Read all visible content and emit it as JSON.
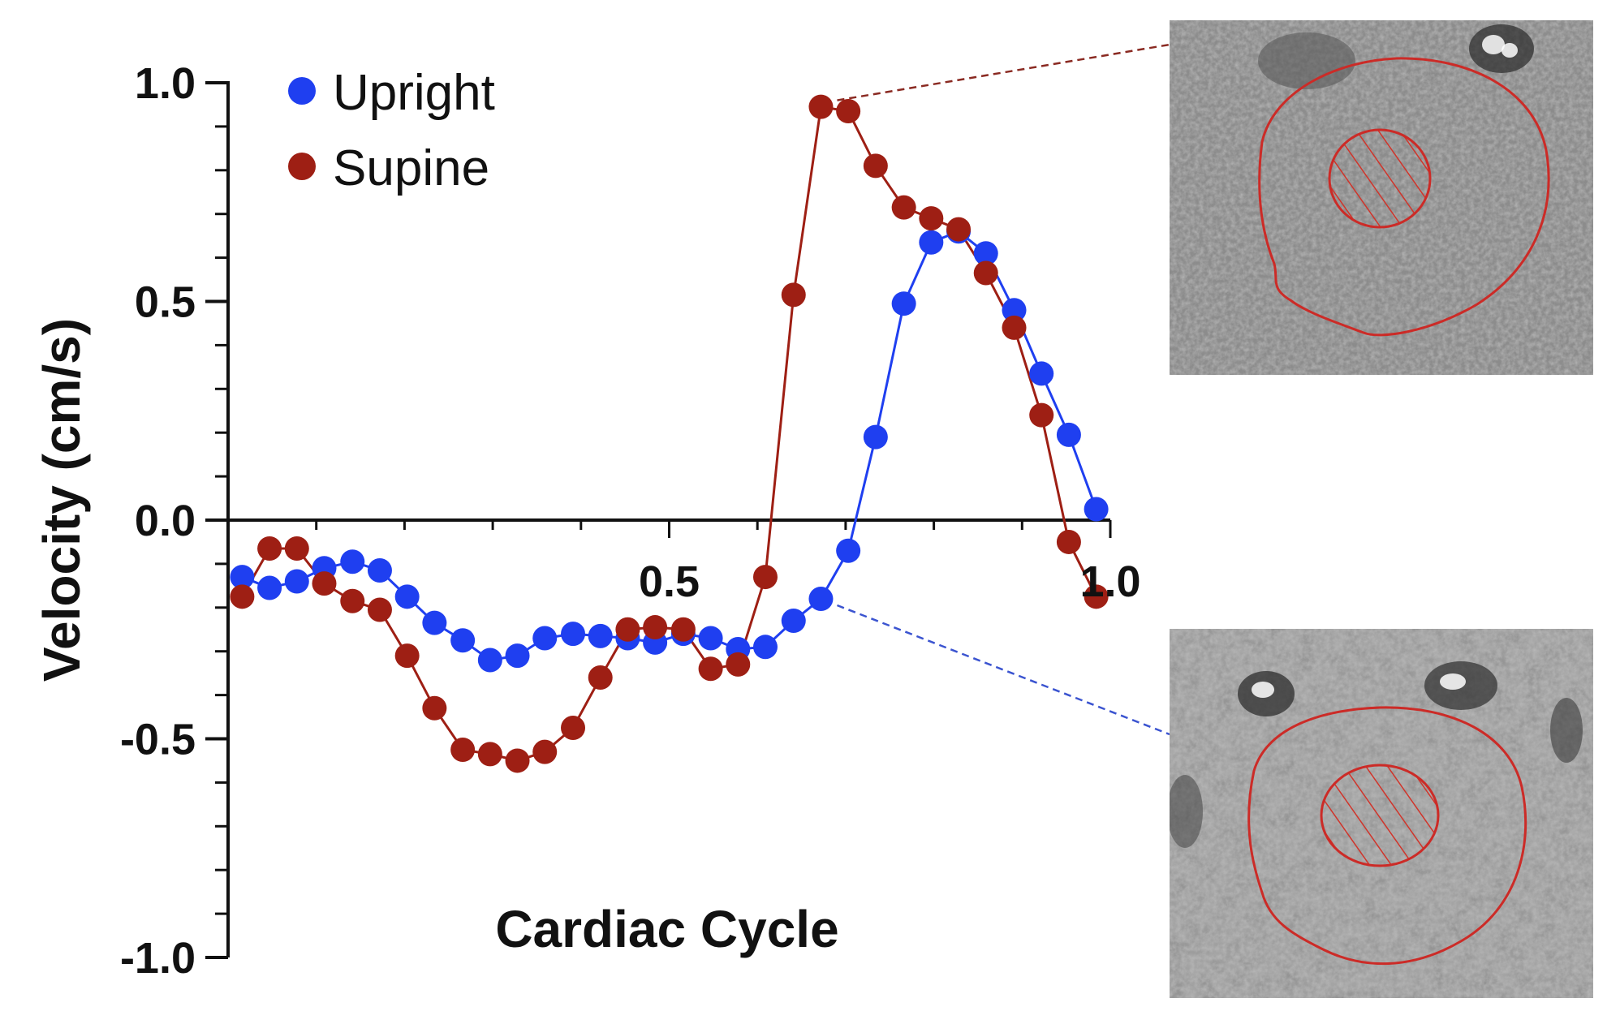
{
  "chart_data": {
    "type": "line",
    "xlabel": "Cardiac Cycle",
    "ylabel": "Velocity (cm/s)",
    "xlim": [
      0,
      1.0
    ],
    "ylim": [
      -1.0,
      1.0
    ],
    "x_ticks": [
      {
        "value": 0.5,
        "label": "0.5"
      },
      {
        "value": 1.0,
        "label": "1.0"
      }
    ],
    "y_ticks": [
      {
        "value": 1.0,
        "label": "1.0"
      },
      {
        "value": 0.5,
        "label": "0.5"
      },
      {
        "value": 0.0,
        "label": "0.0"
      },
      {
        "value": -0.5,
        "label": "-0.5"
      },
      {
        "value": -1.0,
        "label": "-1.0"
      }
    ],
    "grid": false,
    "legend_position": "top-left",
    "series": [
      {
        "name": "Upright",
        "color": "#1f3ff0",
        "x": [
          0.016,
          0.047,
          0.078,
          0.109,
          0.141,
          0.172,
          0.203,
          0.234,
          0.266,
          0.297,
          0.328,
          0.359,
          0.391,
          0.422,
          0.453,
          0.484,
          0.516,
          0.547,
          0.578,
          0.609,
          0.641,
          0.672,
          0.703,
          0.734,
          0.766,
          0.797,
          0.828,
          0.859,
          0.891,
          0.922,
          0.953,
          0.984
        ],
        "y": [
          -0.13,
          -0.155,
          -0.14,
          -0.11,
          -0.095,
          -0.115,
          -0.175,
          -0.235,
          -0.275,
          -0.32,
          -0.31,
          -0.27,
          -0.26,
          -0.265,
          -0.27,
          -0.28,
          -0.26,
          -0.27,
          -0.295,
          -0.29,
          -0.23,
          -0.18,
          -0.07,
          0.19,
          0.495,
          0.635,
          0.66,
          0.61,
          0.48,
          0.335,
          0.195,
          0.025
        ]
      },
      {
        "name": "Supine",
        "color": "#9e1f14",
        "x": [
          0.016,
          0.047,
          0.078,
          0.109,
          0.141,
          0.172,
          0.203,
          0.234,
          0.266,
          0.297,
          0.328,
          0.359,
          0.391,
          0.422,
          0.453,
          0.484,
          0.516,
          0.547,
          0.578,
          0.609,
          0.641,
          0.672,
          0.703,
          0.734,
          0.766,
          0.797,
          0.828,
          0.859,
          0.891,
          0.922,
          0.953,
          0.984
        ],
        "y": [
          -0.175,
          -0.065,
          -0.065,
          -0.145,
          -0.185,
          -0.205,
          -0.31,
          -0.43,
          -0.525,
          -0.535,
          -0.55,
          -0.53,
          -0.475,
          -0.36,
          -0.25,
          -0.245,
          -0.25,
          -0.34,
          -0.33,
          -0.13,
          0.515,
          0.945,
          0.935,
          0.81,
          0.715,
          0.69,
          0.665,
          0.565,
          0.44,
          0.24,
          -0.05,
          -0.175
        ]
      }
    ],
    "insets": [
      {
        "name": "upright-cross-section",
        "connector_color": "#3b54d0",
        "connects_to_series": "Upright",
        "connects_to_x": 0.672
      },
      {
        "name": "supine-cross-section",
        "connector_color": "#8a2a22",
        "connects_to_series": "Supine",
        "connects_to_x": 0.672
      }
    ]
  }
}
